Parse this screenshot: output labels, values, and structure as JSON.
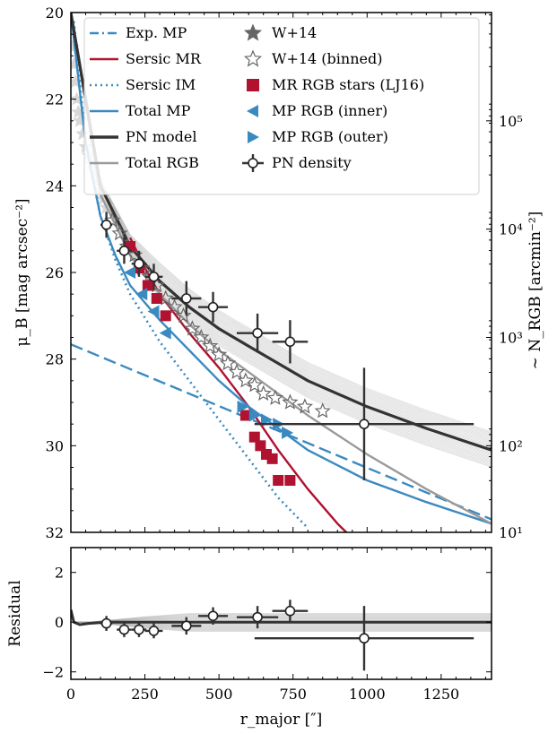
{
  "chart_data": [
    {
      "type": "line",
      "panel": "top",
      "ylabel_left": "μ_B [mag arcsec⁻²]",
      "ylabel_right": "~ N_RGB [arcmin⁻²]",
      "xlim": [
        0,
        1420
      ],
      "ylim": [
        32,
        20
      ],
      "y_inverted": true,
      "right_axis": {
        "scale": "log",
        "ticks": [
          "10¹",
          "10²",
          "10³",
          "10⁴",
          "10⁵"
        ],
        "tick_mu": [
          32,
          30.0,
          27.5,
          25.0,
          22.5
        ]
      },
      "yticks": [
        "20",
        "22",
        "24",
        "26",
        "28",
        "30",
        "32"
      ],
      "legend_placement": "top-right",
      "legend": [
        {
          "label": "Exp. MP",
          "style": "dashdot",
          "color": "#3a8ac0"
        },
        {
          "label": "Sersic MR",
          "style": "solid",
          "color": "#b0122f"
        },
        {
          "label": "Sersic IM",
          "style": "dotted",
          "color": "#3a8ac0"
        },
        {
          "label": "Total MP",
          "style": "solid",
          "color": "#3a8ac0"
        },
        {
          "label": "PN model",
          "style": "solid-thick",
          "color": "#333333"
        },
        {
          "label": "Total RGB",
          "style": "solid",
          "color": "#9a9a9a"
        },
        {
          "label": "W+14",
          "marker": "star-filled",
          "color": "#666666"
        },
        {
          "label": "W+14 (binned)",
          "marker": "star-open",
          "color": "#666666"
        },
        {
          "label": "MR RGB stars (LJ16)",
          "marker": "square",
          "color": "#b0122f"
        },
        {
          "label": "MP RGB (inner)",
          "marker": "triangle-left",
          "color": "#3a8ac0"
        },
        {
          "label": "MP RGB (outer)",
          "marker": "triangle-right",
          "color": "#3a8ac0"
        },
        {
          "label": "PN density",
          "marker": "circle-open-errorbar",
          "color": "#333333"
        }
      ],
      "series": [
        {
          "name": "Exp. MP",
          "x": [
            0,
            200,
            400,
            600,
            800,
            1000,
            1200,
            1420
          ],
          "y": [
            27.66,
            28.23,
            28.8,
            29.37,
            29.94,
            30.51,
            31.08,
            31.7
          ]
        },
        {
          "name": "Sersic MR",
          "x": [
            200,
            250,
            300,
            400,
            500,
            600,
            700,
            800,
            900,
            930
          ],
          "y": [
            25.2,
            25.9,
            26.5,
            27.4,
            28.2,
            29.1,
            30.1,
            31.0,
            31.8,
            32.0
          ]
        },
        {
          "name": "Sersic IM",
          "x": [
            10,
            50,
            100,
            150,
            200,
            300,
            400,
            500,
            600,
            700,
            800
          ],
          "y": [
            20.2,
            23.0,
            24.7,
            25.7,
            26.5,
            27.6,
            28.5,
            29.4,
            30.3,
            31.2,
            31.9
          ]
        },
        {
          "name": "Total MP",
          "x": [
            0,
            50,
            100,
            150,
            200,
            300,
            400,
            500,
            600,
            700,
            800,
            1000,
            1200,
            1420
          ],
          "y": [
            20.0,
            23.0,
            24.7,
            25.6,
            26.3,
            27.1,
            27.8,
            28.5,
            29.1,
            29.6,
            30.1,
            30.8,
            31.3,
            31.8
          ]
        },
        {
          "name": "PN model",
          "x": [
            0,
            100,
            200,
            300,
            400,
            500,
            600,
            700,
            800,
            1000,
            1200,
            1420
          ],
          "y": [
            20.0,
            24.0,
            25.4,
            26.2,
            26.8,
            27.3,
            27.7,
            28.1,
            28.5,
            29.1,
            29.6,
            30.1
          ]
        },
        {
          "name": "Total RGB",
          "x": [
            0,
            100,
            200,
            300,
            400,
            500,
            600,
            700,
            800,
            1000,
            1200,
            1420
          ],
          "y": [
            20.0,
            24.2,
            25.6,
            26.5,
            27.2,
            27.8,
            28.3,
            28.8,
            29.3,
            30.2,
            31.0,
            31.8
          ]
        },
        {
          "name": "W+14",
          "x": [
            5,
            10,
            15,
            20,
            25,
            30,
            40,
            50,
            60,
            70,
            80,
            90,
            100,
            110,
            120
          ],
          "y": [
            20.8,
            21.2,
            21.6,
            22.0,
            22.3,
            22.5,
            22.8,
            23.1,
            23.3,
            23.5,
            23.7,
            23.9,
            24.1,
            24.3,
            24.5
          ]
        },
        {
          "name": "W+14 (binned)",
          "x": [
            140,
            165,
            190,
            215,
            240,
            265,
            290,
            320,
            350,
            380,
            410,
            440,
            470,
            500,
            530,
            560,
            590,
            620,
            650,
            690,
            740,
            790,
            850
          ],
          "y": [
            24.8,
            25.1,
            25.4,
            25.6,
            25.9,
            26.1,
            26.3,
            26.6,
            26.8,
            27.0,
            27.3,
            27.5,
            27.7,
            27.9,
            28.1,
            28.3,
            28.5,
            28.6,
            28.8,
            28.9,
            29.0,
            29.1,
            29.2
          ]
        },
        {
          "name": "MR RGB stars (LJ16)",
          "x": [
            200,
            230,
            260,
            290,
            320,
            590,
            620,
            640,
            660,
            680,
            700,
            740
          ],
          "y": [
            25.4,
            25.9,
            26.3,
            26.6,
            27.0,
            29.3,
            29.8,
            30.0,
            30.2,
            30.3,
            30.8,
            30.8
          ]
        },
        {
          "name": "MP RGB (inner)",
          "x": [
            200,
            240,
            280,
            320
          ],
          "y": [
            26.0,
            26.5,
            26.9,
            27.4
          ]
        },
        {
          "name": "MP RGB (outer)",
          "x": [
            580,
            620,
            660,
            700,
            730
          ],
          "y": [
            29.1,
            29.3,
            29.4,
            29.5,
            29.7
          ]
        },
        {
          "name": "PN density",
          "x": [
            120,
            180,
            230,
            280,
            390,
            480,
            630,
            740,
            990
          ],
          "y": [
            24.9,
            25.5,
            25.8,
            26.1,
            26.6,
            26.8,
            27.4,
            27.6,
            29.5
          ],
          "xerr": [
            20,
            25,
            25,
            30,
            50,
            50,
            70,
            60,
            370
          ],
          "yerr": [
            0.3,
            0.3,
            0.3,
            0.3,
            0.4,
            0.35,
            0.45,
            0.5,
            1.3
          ]
        }
      ]
    },
    {
      "type": "line",
      "panel": "bottom",
      "ylabel": "Residual",
      "xlabel": "r_major [″]",
      "xlim": [
        0,
        1420
      ],
      "ylim": [
        -2.3,
        3.0
      ],
      "xticks": [
        "0",
        "250",
        "500",
        "750",
        "1000",
        "1250"
      ],
      "yticks": [
        "−2",
        "0",
        "2"
      ],
      "series": [
        {
          "name": "PN density residual",
          "x": [
            120,
            180,
            230,
            280,
            390,
            480,
            630,
            740,
            990
          ],
          "y": [
            -0.05,
            -0.3,
            -0.3,
            -0.35,
            -0.15,
            0.25,
            0.2,
            0.45,
            -0.65
          ],
          "xerr": [
            20,
            25,
            25,
            30,
            50,
            50,
            70,
            60,
            370
          ],
          "yerr": [
            0.3,
            0.3,
            0.3,
            0.3,
            0.35,
            0.35,
            0.45,
            0.45,
            1.3
          ]
        },
        {
          "name": "PN model",
          "x": [
            0,
            10,
            30,
            60,
            120,
            300,
            600,
            1000,
            1420
          ],
          "y": [
            0.5,
            0.0,
            -0.1,
            -0.05,
            0.0,
            0.0,
            0.0,
            0.0,
            0.0
          ]
        }
      ]
    }
  ]
}
